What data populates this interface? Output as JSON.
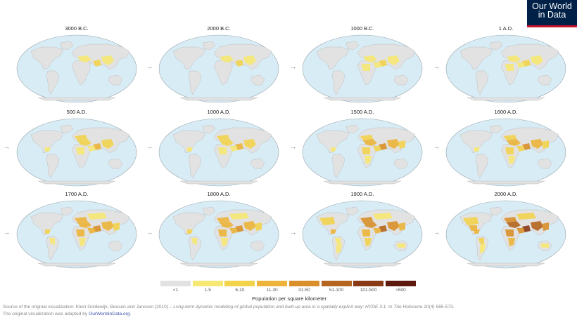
{
  "logo": {
    "line1": "Our World",
    "line2": "in Data"
  },
  "panels": [
    {
      "label": "3000 B.C.",
      "level": 1
    },
    {
      "label": "2000 B.C.",
      "level": 1
    },
    {
      "label": "1000 B.C.",
      "level": 2
    },
    {
      "label": "1 A.D.",
      "level": 2
    },
    {
      "label": "500 A.D.",
      "level": 3
    },
    {
      "label": "1000 A.D.",
      "level": 3
    },
    {
      "label": "1500 A.D.",
      "level": 4
    },
    {
      "label": "1600 A.D.",
      "level": 4
    },
    {
      "label": "1700 A.D.",
      "level": 5
    },
    {
      "label": "1800 A.D.",
      "level": 5
    },
    {
      "label": "1900 A.D.",
      "level": 6
    },
    {
      "label": "2000 A.D.",
      "level": 7
    }
  ],
  "legend": {
    "title": "Population per square kilometer",
    "items": [
      {
        "label": "<1",
        "color": "#e2e2e2"
      },
      {
        "label": "1-5",
        "color": "#f6e873"
      },
      {
        "label": "6-10",
        "color": "#f3d34c"
      },
      {
        "label": "11-30",
        "color": "#ecb43a"
      },
      {
        "label": "31-50",
        "color": "#d9902a"
      },
      {
        "label": "51-100",
        "color": "#b5651f"
      },
      {
        "label": "101-500",
        "color": "#8a3a17"
      },
      {
        "label": ">500",
        "color": "#5e1a0c"
      }
    ]
  },
  "colors": {
    "ocean": "#d8ecf5",
    "land": "#e2e2e2",
    "outline": "#9aa6ad"
  },
  "source": {
    "prefix": "Source of the original visualization: Klein Goldewijk, Beusen and Janssen (2010) –",
    "title": "Long-term dynamic modeling of global population and built-up area in a spatially explicit way: HYDE 3.1.",
    "in": " In",
    "journal": "The Holocene",
    "suffix": " 20(4) 565-573.",
    "line2": "The original visualization was adapted by",
    "link": "OurWorldinData.org",
    "end": "."
  }
}
